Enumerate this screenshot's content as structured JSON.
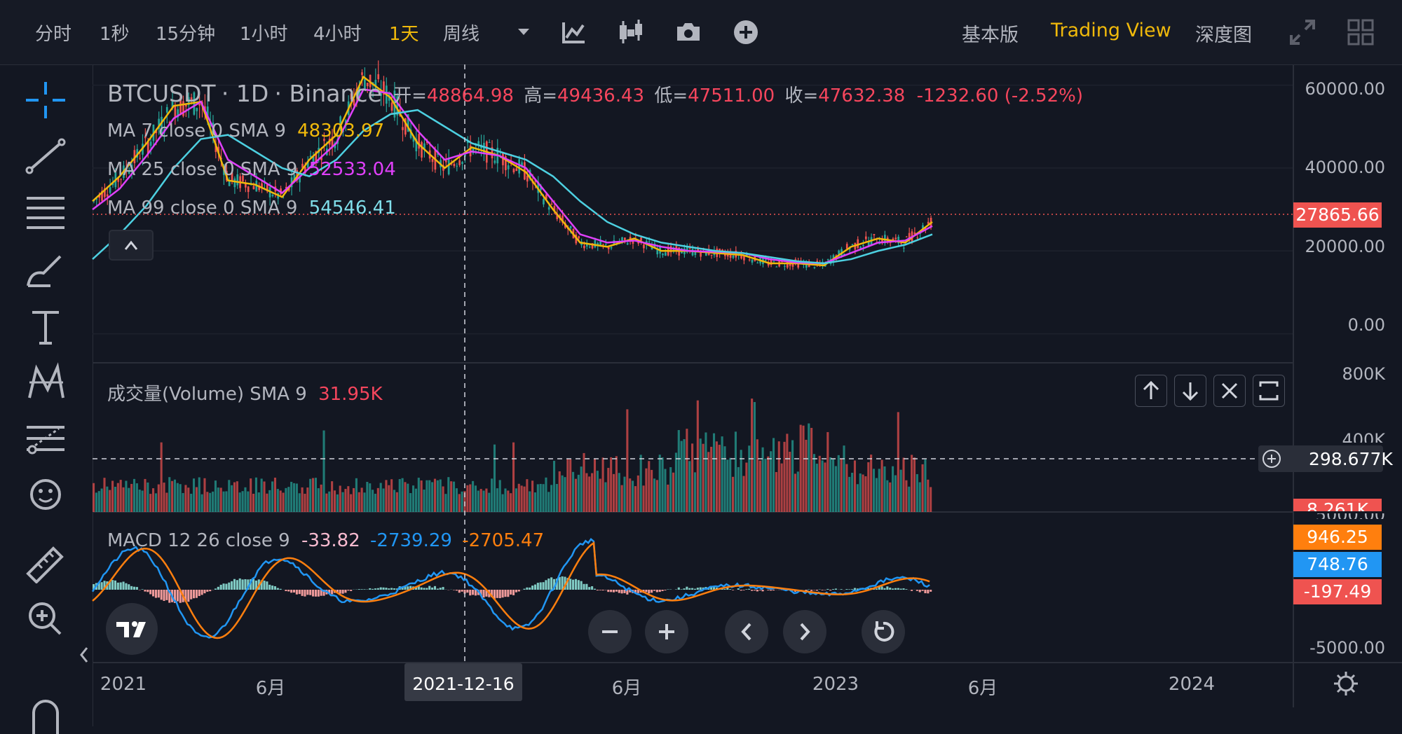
{
  "toolbar": {
    "intervals": [
      "分时",
      "1秒",
      "15分钟",
      "1小时",
      "4小时",
      "1天",
      "周线"
    ],
    "active_interval": "1天",
    "views": [
      "基本版",
      "Trading View",
      "深度图"
    ],
    "active_view": "Trading View"
  },
  "legend": {
    "symbol": "BTCUSDT",
    "interval": "1D",
    "exchange": "Binance",
    "open_label": "开=",
    "open": "48864.98",
    "high_label": "高=",
    "high": "49436.43",
    "low_label": "低=",
    "low": "47511.00",
    "close_label": "收=",
    "close": "47632.38",
    "change": "-1232.60 (-2.52%)",
    "ma7_label": "MA 7 close 0 SMA 9",
    "ma7_value": "48303.97",
    "ma25_label": "MA 25 close 0 SMA 9",
    "ma25_value": "52533.04",
    "ma99_label": "MA 99 close 0 SMA 9",
    "ma99_value": "54546.41",
    "volume_label": "成交量(Volume) SMA 9",
    "volume_value": "31.95K",
    "macd_label": "MACD 12 26 close 9",
    "macd_hist": "-33.82",
    "macd_line": "-2739.29",
    "macd_signal": "-2705.47"
  },
  "price_axis": {
    "labels": [
      "60000.00",
      "40000.00",
      "20000.00",
      "0.00"
    ],
    "last_price": "27865.66",
    "volume_labels": [
      "800K",
      "400K"
    ],
    "volume_crosshair": "298.677K",
    "volume_last": "8.261K",
    "macd_labels": [
      "5000.00",
      "-5000.00"
    ],
    "macd_signal_badge": "946.25",
    "macd_line_badge": "748.76",
    "macd_hist_badge": "-197.49"
  },
  "time_axis": {
    "labels": [
      "2021",
      "6月",
      "2023",
      "6月",
      "2024"
    ],
    "crosshair_date": "2021-12-16"
  },
  "colors": {
    "up": "#26a69a",
    "down": "#ef5350",
    "ma7": "#f0b90b",
    "ma25": "#e040fb",
    "ma99": "#4dd0e1",
    "macd_line": "#2196f3",
    "macd_signal": "#ff7f0e",
    "accent": "#f0b90b"
  },
  "icons": [
    "crosshair-icon",
    "trend-line-icon",
    "fib-lines-icon",
    "brush-icon",
    "text-icon",
    "pattern-icon",
    "forecast-icon",
    "emoji-icon",
    "ruler-icon",
    "zoom-in-icon",
    "magnet-icon",
    "indicators-icon",
    "candles-icon",
    "camera-icon",
    "add-icon",
    "fullscreen-icon",
    "layout-icon",
    "settings-icon",
    "tradingview-logo-icon",
    "zoom-out-icon",
    "scroll-left-icon",
    "scroll-right-icon",
    "reset-icon",
    "arrow-up-icon",
    "arrow-down-icon",
    "close-icon",
    "expand-pane-icon"
  ],
  "chart_data": {
    "type": "candlestick",
    "ylim": [
      -7000,
      65000
    ],
    "series": [
      {
        "name": "MA 7",
        "values": [
          32000,
          38000,
          46000,
          55000,
          56000,
          37000,
          36000,
          33000,
          42000,
          48000,
          62000,
          57000,
          46000,
          40000,
          45000,
          43000,
          39000,
          30000,
          22000,
          21000,
          23000,
          20000,
          20000,
          19500,
          19000,
          17000,
          17000,
          16500,
          21000,
          23000,
          22000,
          27000
        ]
      },
      {
        "name": "MA 25",
        "values": [
          30000,
          35000,
          43000,
          52000,
          56000,
          42000,
          38000,
          34000,
          40000,
          46000,
          59000,
          58000,
          49000,
          42000,
          44000,
          43000,
          40000,
          32000,
          24000,
          22000,
          22500,
          21000,
          20000,
          19800,
          19500,
          18000,
          17200,
          17000,
          19500,
          22000,
          22500,
          26000
        ]
      },
      {
        "name": "MA 99",
        "values": [
          18000,
          24000,
          31000,
          40000,
          47000,
          48000,
          44000,
          40000,
          38000,
          42000,
          49000,
          53000,
          54000,
          50000,
          46000,
          44000,
          42000,
          38000,
          32000,
          27000,
          24000,
          22000,
          21000,
          20000,
          19500,
          18500,
          17500,
          17000,
          18000,
          20000,
          21500,
          24000
        ]
      }
    ]
  }
}
